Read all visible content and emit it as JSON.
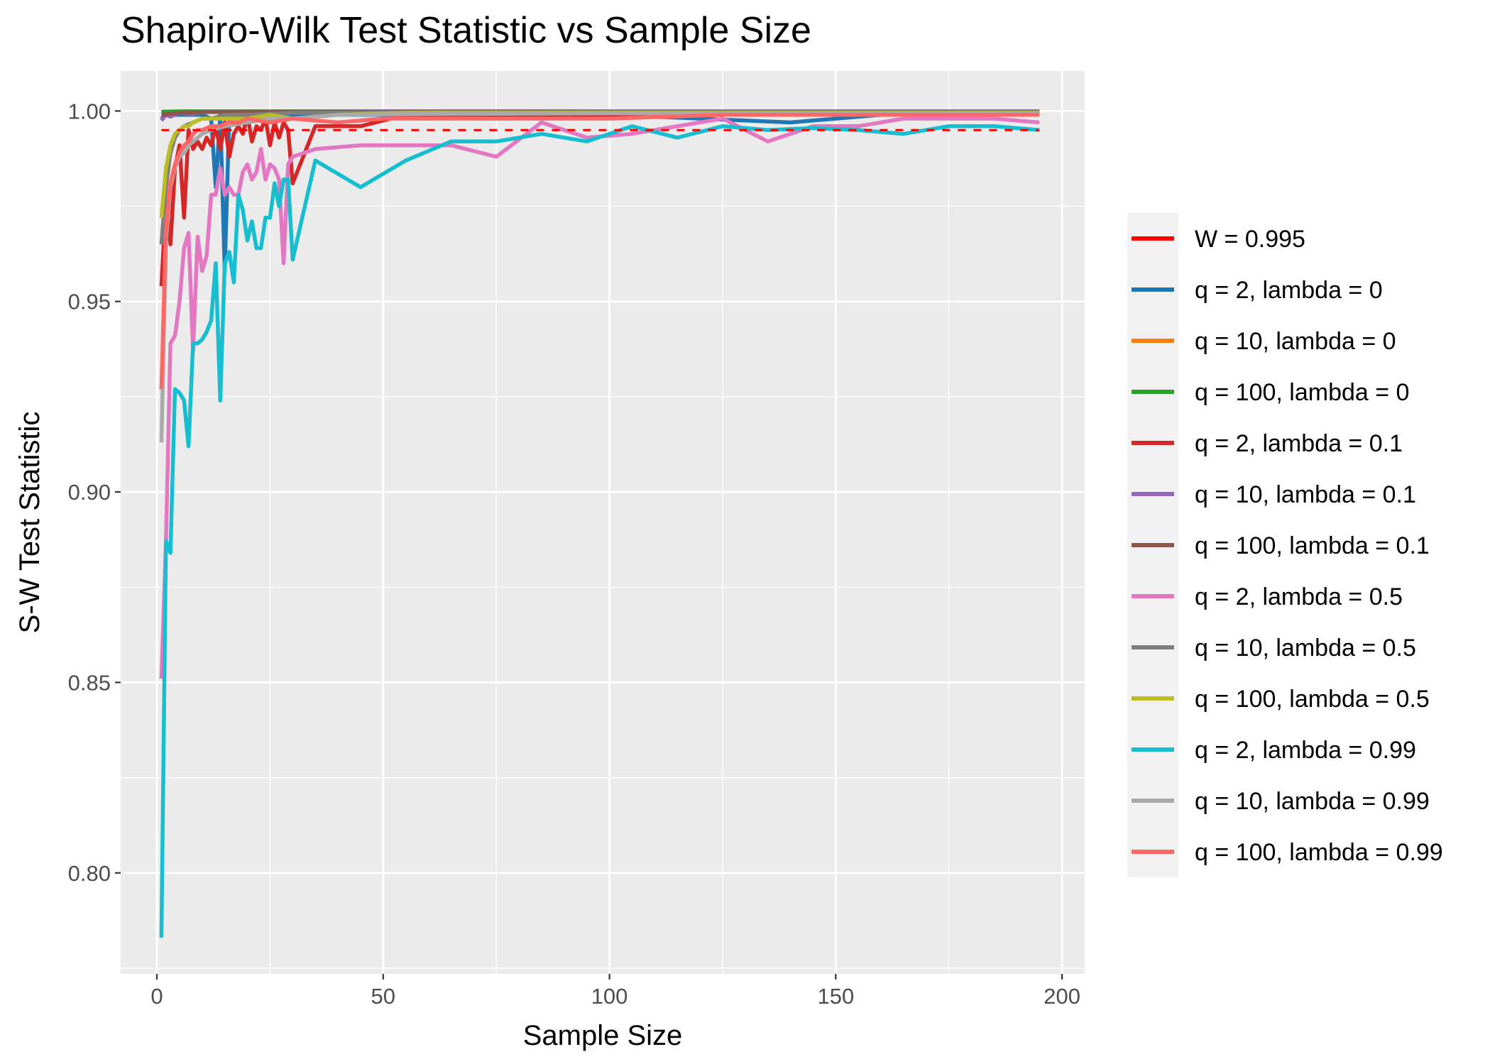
{
  "chart_data": {
    "type": "line",
    "title": "Shapiro-Wilk Test Statistic vs Sample Size",
    "xlabel": "Sample Size",
    "ylabel": "S-W Test Statistic",
    "xlim": [
      -8,
      205
    ],
    "ylim": [
      0.7735,
      1.0105
    ],
    "x_ticks": [
      0,
      50,
      100,
      150,
      200
    ],
    "x_tick_labels": [
      "0",
      "50",
      "100",
      "150",
      "200"
    ],
    "y_ticks": [
      0.8,
      0.85,
      0.9,
      0.95,
      1.0
    ],
    "y_tick_labels": [
      "0.80",
      "0.85",
      "0.90",
      "0.95",
      "1.00"
    ],
    "grid": true,
    "legend_position": "right",
    "reference_line": {
      "name": "W = 0.995",
      "y": 0.995,
      "x_range": [
        1,
        195
      ],
      "color": "#ff0000",
      "style": "dashed"
    },
    "series": [
      {
        "name": "q = 2, lambda = 0",
        "color": "#1f77b4",
        "x": [
          1,
          2,
          3,
          5,
          8,
          10,
          12,
          13,
          14,
          15,
          16,
          18,
          20,
          25,
          30,
          45,
          60,
          100,
          140,
          150,
          160,
          195
        ],
        "y": [
          0.998,
          0.999,
          0.999,
          0.999,
          0.999,
          0.999,
          0.998,
          0.98,
          0.999,
          0.958,
          0.999,
          0.999,
          0.999,
          0.999,
          0.999,
          0.999,
          0.999,
          0.999,
          0.997,
          0.998,
          0.999,
          0.999
        ]
      },
      {
        "name": "q = 10, lambda = 0",
        "color": "#ff7f0e",
        "x": [
          1,
          5,
          10,
          20,
          50,
          100,
          150,
          195
        ],
        "y": [
          0.9995,
          0.9998,
          0.9998,
          0.9998,
          0.9998,
          0.9998,
          0.9998,
          0.9998
        ]
      },
      {
        "name": "q = 100, lambda = 0",
        "color": "#2ca02c",
        "x": [
          1,
          5,
          10,
          20,
          50,
          100,
          150,
          195
        ],
        "y": [
          0.9998,
          0.9999,
          0.9999,
          0.9999,
          0.9999,
          0.9999,
          0.9999,
          0.9999
        ]
      },
      {
        "name": "q = 2, lambda = 0.1",
        "color": "#d62728",
        "x": [
          1,
          2,
          3,
          4,
          5,
          6,
          7,
          8,
          9,
          10,
          11,
          12,
          13,
          14,
          15,
          16,
          17,
          18,
          19,
          20,
          21,
          22,
          23,
          24,
          25,
          26,
          27,
          28,
          29,
          30,
          35,
          45,
          55,
          75,
          95,
          195
        ],
        "y": [
          0.954,
          0.976,
          0.965,
          0.985,
          0.991,
          0.972,
          0.995,
          0.99,
          0.992,
          0.99,
          0.993,
          0.991,
          0.996,
          0.99,
          0.997,
          0.988,
          0.994,
          0.996,
          0.994,
          0.999,
          0.992,
          0.996,
          0.995,
          0.998,
          0.991,
          0.997,
          0.993,
          0.997,
          0.995,
          0.981,
          0.996,
          0.996,
          0.999,
          0.999,
          0.999,
          0.999
        ]
      },
      {
        "name": "q = 10, lambda = 0.1",
        "color": "#9467bd",
        "x": [
          1,
          2,
          3,
          5,
          8,
          10,
          15,
          20,
          50,
          100,
          195
        ],
        "y": [
          0.9975,
          0.999,
          0.9985,
          0.9995,
          0.9992,
          0.9998,
          0.9998,
          0.9998,
          0.9999,
          0.9999,
          0.9999
        ]
      },
      {
        "name": "q = 100, lambda = 0.1",
        "color": "#8c564b",
        "x": [
          1,
          5,
          10,
          20,
          50,
          100,
          150,
          195
        ],
        "y": [
          0.999,
          0.9995,
          0.9997,
          0.9998,
          0.9998,
          0.9998,
          0.9998,
          0.9998
        ]
      },
      {
        "name": "q = 2, lambda = 0.5",
        "color": "#e377c2",
        "x": [
          1,
          2,
          3,
          4,
          5,
          6,
          7,
          8,
          9,
          10,
          11,
          12,
          13,
          14,
          15,
          16,
          17,
          18,
          19,
          20,
          21,
          22,
          23,
          24,
          25,
          26,
          27,
          28,
          29,
          30,
          35,
          45,
          55,
          65,
          75,
          85,
          95,
          105,
          115,
          125,
          135,
          145,
          155,
          165,
          175,
          185,
          195
        ],
        "y": [
          0.851,
          0.887,
          0.939,
          0.941,
          0.95,
          0.964,
          0.968,
          0.937,
          0.967,
          0.958,
          0.962,
          0.978,
          0.978,
          0.985,
          0.978,
          0.98,
          0.978,
          0.978,
          0.984,
          0.986,
          0.982,
          0.984,
          0.99,
          0.982,
          0.986,
          0.985,
          0.982,
          0.96,
          0.986,
          0.988,
          0.99,
          0.991,
          0.991,
          0.991,
          0.988,
          0.997,
          0.993,
          0.994,
          0.996,
          0.998,
          0.992,
          0.996,
          0.996,
          0.998,
          0.998,
          0.998,
          0.997
        ]
      },
      {
        "name": "q = 10, lambda = 0.5",
        "color": "#7f7f7f",
        "x": [
          1,
          2,
          3,
          4,
          5,
          6,
          8,
          10,
          12,
          15,
          20,
          30,
          45,
          60,
          100,
          140,
          195
        ],
        "y": [
          0.965,
          0.98,
          0.989,
          0.993,
          0.995,
          0.996,
          0.997,
          0.998,
          0.998,
          0.999,
          0.999,
          0.9995,
          0.9996,
          0.9997,
          0.9998,
          0.9998,
          0.9998
        ]
      },
      {
        "name": "q = 100, lambda = 0.5",
        "color": "#bcbd22",
        "x": [
          1,
          2,
          3,
          4,
          5,
          6,
          7,
          8,
          10,
          12,
          15,
          20,
          25,
          30,
          40,
          55,
          100,
          195
        ],
        "y": [
          0.972,
          0.985,
          0.991,
          0.994,
          0.995,
          0.996,
          0.996,
          0.997,
          0.998,
          0.998,
          0.998,
          0.998,
          0.999,
          0.998,
          0.999,
          0.9995,
          0.9995,
          0.9995
        ]
      },
      {
        "name": "q = 2, lambda = 0.99",
        "color": "#17becf",
        "x": [
          1,
          2,
          3,
          4,
          5,
          6,
          7,
          8,
          9,
          10,
          11,
          12,
          13,
          14,
          15,
          16,
          17,
          18,
          19,
          20,
          21,
          22,
          23,
          24,
          25,
          26,
          27,
          28,
          29,
          30,
          35,
          45,
          55,
          65,
          75,
          85,
          95,
          105,
          115,
          125,
          135,
          145,
          155,
          165,
          175,
          185,
          195
        ],
        "y": [
          0.783,
          0.887,
          0.884,
          0.927,
          0.926,
          0.924,
          0.912,
          0.939,
          0.939,
          0.94,
          0.942,
          0.945,
          0.96,
          0.924,
          0.96,
          0.963,
          0.955,
          0.978,
          0.974,
          0.966,
          0.971,
          0.964,
          0.964,
          0.972,
          0.972,
          0.981,
          0.975,
          0.982,
          0.982,
          0.961,
          0.987,
          0.98,
          0.987,
          0.992,
          0.992,
          0.994,
          0.992,
          0.996,
          0.993,
          0.996,
          0.995,
          0.9955,
          0.995,
          0.994,
          0.996,
          0.996,
          0.995
        ]
      },
      {
        "name": "q = 10, lambda = 0.99",
        "color": "#aaaaaa",
        "x": [
          1,
          2,
          3,
          4,
          5,
          6,
          7,
          8,
          10,
          12,
          15,
          20,
          25,
          30,
          40,
          60,
          100,
          195
        ],
        "y": [
          0.913,
          0.966,
          0.98,
          0.985,
          0.988,
          0.989,
          0.991,
          0.992,
          0.994,
          0.995,
          0.996,
          0.997,
          0.998,
          0.998,
          0.999,
          0.9992,
          0.9994,
          0.9994
        ]
      },
      {
        "name": "q = 100, lambda = 0.99",
        "color": "#ff6666",
        "x": [
          1,
          2,
          3,
          4,
          5,
          6,
          7,
          8,
          9,
          10,
          12,
          14,
          16,
          18,
          20,
          25,
          30,
          40,
          50,
          75,
          100,
          125,
          150,
          195
        ],
        "y": [
          0.927,
          0.969,
          0.981,
          0.986,
          0.989,
          0.991,
          0.992,
          0.994,
          0.995,
          0.995,
          0.996,
          0.996,
          0.997,
          0.997,
          0.998,
          0.997,
          0.998,
          0.997,
          0.998,
          0.998,
          0.998,
          0.999,
          0.999,
          0.999
        ]
      }
    ]
  }
}
